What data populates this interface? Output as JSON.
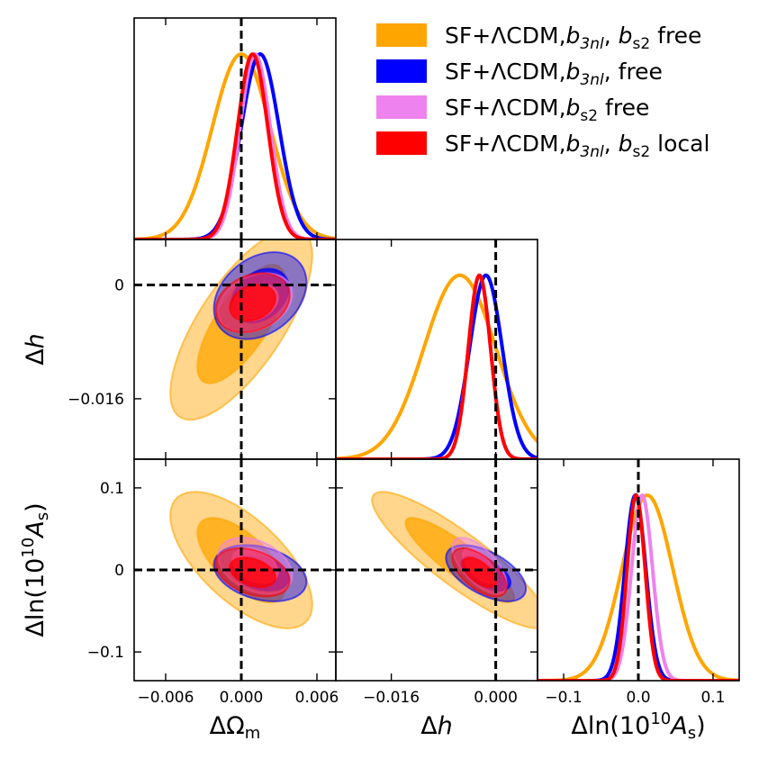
{
  "chart_data": {
    "type": "triangle",
    "parameters": [
      {
        "key": "Om",
        "label_main": "ΔΩ",
        "label_sub": "m",
        "range": [
          -0.0085,
          0.0075
        ],
        "ticks": [
          -0.006,
          0.0,
          0.006
        ],
        "tick_labels": [
          "−0.006",
          "0.000",
          "0.006"
        ],
        "fiducial": 0.0
      },
      {
        "key": "h",
        "label_main": "Δ",
        "label_italic": "h",
        "range": [
          -0.0245,
          0.0064
        ],
        "ticks": [
          -0.016,
          0.0
        ],
        "tick_labels": [
          "−0.016",
          "0.000"
        ],
        "y_tick_labels": [
          "−0.016",
          "0"
        ],
        "fiducial": 0.0
      },
      {
        "key": "As",
        "label_main": "Δln(10",
        "label_sup": "10",
        "label_italic": "A",
        "label_sub": "s",
        "range": [
          -0.135,
          0.135
        ],
        "ticks": [
          -0.1,
          0.0,
          0.1
        ],
        "tick_labels": [
          "−0.1",
          "0.0",
          "0.1"
        ],
        "y_tick_labels": [
          "−0.1",
          "0",
          "0.1"
        ],
        "fiducial": 0.0
      }
    ],
    "series": [
      {
        "name": "SF+ΛCDM,b3nl, bs2 free",
        "legend_parts": [
          "SF+ΛCDM,",
          "b",
          "3nl",
          ", ",
          "b",
          "s2",
          " free"
        ],
        "color": "#FFA500",
        "mean": {
          "Om": 0.0,
          "h": -0.0055,
          "As": 0.012
        },
        "sigma": {
          "Om": 0.0023,
          "h": 0.0055,
          "As": 0.034
        },
        "corr": {
          "Om_h": 0.72,
          "Om_As": -0.65,
          "h_As": -0.88
        }
      },
      {
        "name": "SF+ΛCDM,b3nl, free",
        "legend_parts": [
          "SF+ΛCDM,",
          "b",
          "3nl",
          ", ",
          "",
          "",
          " free"
        ],
        "color": "#0000FF",
        "mean": {
          "Om": 0.0015,
          "h": -0.0015,
          "As": -0.004
        },
        "sigma": {
          "Om": 0.0015,
          "h": 0.0025,
          "As": 0.014
        },
        "corr": {
          "Om_h": 0.3,
          "Om_As": -0.3,
          "h_As": -0.55
        }
      },
      {
        "name": "SF+ΛCDM,bs2 free",
        "legend_parts": [
          "SF+ΛCDM,",
          "",
          "",
          "",
          "b",
          "s2",
          " free"
        ],
        "color": "#EE82EE",
        "mean": {
          "Om": 0.0011,
          "h": -0.0025,
          "As": 0.005
        },
        "sigma": {
          "Om": 0.0012,
          "h": 0.0017,
          "As": 0.014
        },
        "corr": {
          "Om_h": 0.3,
          "Om_As": -0.35,
          "h_As": -0.65
        }
      },
      {
        "name": "SF+ΛCDM,b3nl, bs2 local",
        "legend_parts": [
          "SF+ΛCDM,",
          "b",
          "3nl",
          ", ",
          "b",
          "s2",
          " local"
        ],
        "color": "#FF0000",
        "mean": {
          "Om": 0.0009,
          "h": -0.0025,
          "As": -0.003
        },
        "sigma": {
          "Om": 0.0012,
          "h": 0.0017,
          "As": 0.012
        },
        "corr": {
          "Om_h": 0.25,
          "Om_As": -0.35,
          "h_As": -0.6
        }
      }
    ],
    "contour_levels": [
      "68%",
      "95%"
    ],
    "fiducial_lines": "dashed black at 0",
    "legend_location": "top-right"
  }
}
